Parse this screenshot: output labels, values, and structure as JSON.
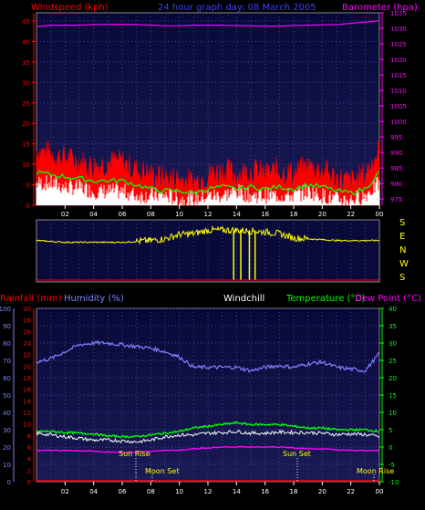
{
  "header": {
    "left_title": "Windspeed (kph)",
    "center_title": "24 hour graph day: 08 March 2005",
    "right_title": "Barometer (hpa)"
  },
  "colors": {
    "background": "#000000",
    "plot_bg_top": "#0a0a3a",
    "plot_bg_bottom": "#15154a",
    "grid": "#3a4aa0",
    "windspeed": "#ff0000",
    "gust": "#ffffff",
    "avg": "#00ff00",
    "barometer": "#ff00ff",
    "direction": "#ffff00",
    "rainfall": "#ff0000",
    "humidity": "#8080ff",
    "windchill": "#ffffff",
    "temperature": "#00ff00",
    "dewpoint": "#ff00ff",
    "axis_left": "#ff0000",
    "axis_right": "#ff00ff",
    "axis_x": "#ffffff",
    "axis_yellow": "#ffff00",
    "axis_green": "#00ff00",
    "axis_humidity": "#8080ff"
  },
  "direction_labels": [
    "S",
    "E",
    "N",
    "W",
    "S"
  ],
  "bottom_header": {
    "rainfall": "Rainfall (mm)",
    "humidity": "Humidity (%)",
    "windchill": "Windchill",
    "temperature": "Temperature (°C)",
    "dewpoint": "Dew Point (°C)"
  },
  "annotations": {
    "sun_rise": "Sun Rise",
    "moon_set": "Moon Set",
    "sun_set": "Sun Set",
    "moon_rise": "Moon Rise"
  },
  "chart_data": [
    {
      "type": "line",
      "title": "24 hour graph day: 08 March 2005",
      "xlabel": "",
      "ylabel": "Windspeed (kph)",
      "y2label": "Barometer (hpa)",
      "x_ticks": [
        "02",
        "04",
        "06",
        "08",
        "10",
        "12",
        "14",
        "16",
        "18",
        "20",
        "22",
        "00"
      ],
      "y_ticks": [
        0,
        5,
        10,
        15,
        20,
        25,
        30,
        35,
        40,
        45
      ],
      "y2_ticks": [
        975,
        980,
        985,
        990,
        995,
        1000,
        1005,
        1010,
        1015,
        1020,
        1025,
        1030,
        1035
      ],
      "ylim": [
        0,
        47
      ],
      "y2lim": [
        973,
        1035
      ],
      "x": [
        0,
        1,
        2,
        3,
        4,
        5,
        6,
        7,
        8,
        9,
        10,
        11,
        12,
        13,
        14,
        15,
        16,
        17,
        18,
        19,
        20,
        21,
        22,
        23,
        24
      ],
      "series": [
        {
          "values": [
            12,
            11,
            10,
            9,
            8,
            9,
            9,
            7,
            6,
            5,
            5,
            4,
            6,
            7,
            6,
            7,
            6,
            7,
            6,
            8,
            7,
            5,
            4,
            6,
            12
          ]
        },
        {
          "values": [
            5,
            5,
            4,
            4,
            3,
            3,
            3,
            2,
            2,
            2,
            1,
            1,
            2,
            2,
            3,
            2,
            2,
            2,
            2,
            3,
            2,
            1,
            1,
            2,
            5
          ]
        },
        {
          "values": [
            8,
            7.5,
            7,
            6.5,
            6,
            6,
            6,
            5,
            4,
            3.5,
            3.5,
            3,
            4,
            4.5,
            4,
            4.5,
            4,
            4.5,
            4,
            5,
            4.5,
            3.5,
            3,
            4,
            8
          ]
        },
        {
          "values": [
            1030.5,
            1031,
            1031,
            1031,
            1031.2,
            1031.3,
            1031.3,
            1031.2,
            1031,
            1030.8,
            1030.8,
            1031,
            1031,
            1031,
            1030.9,
            1030.8,
            1030.7,
            1030.7,
            1030.9,
            1031,
            1031.1,
            1031.2,
            1031.6,
            1032,
            1032.4
          ]
        }
      ]
    },
    {
      "type": "line",
      "ylabel": "",
      "y_ticks_labels": [
        "S",
        "E",
        "N",
        "W",
        "S"
      ],
      "ylim": [
        0,
        360
      ],
      "x": [
        0,
        2,
        4,
        6,
        7,
        8,
        9,
        10,
        11,
        12,
        13,
        14,
        15,
        16,
        17,
        18,
        19,
        20,
        21,
        22,
        23,
        24
      ],
      "series": [
        {
          "values": [
            240,
            230,
            230,
            230,
            235,
            240,
            250,
            275,
            280,
            300,
            300,
            300,
            295,
            290,
            280,
            255,
            250,
            245,
            240,
            240,
            240,
            240
          ]
        }
      ]
    },
    {
      "type": "line",
      "ylabel": "Rainfall (mm)",
      "y_ticks": [
        0,
        2,
        4,
        6,
        8,
        10,
        12,
        14,
        16,
        18,
        20,
        22,
        24,
        26,
        28,
        30
      ],
      "humidity_ticks": [
        0,
        10,
        20,
        30,
        40,
        50,
        60,
        70,
        80,
        90,
        100
      ],
      "temperature_ticks": [
        -10,
        -5,
        0,
        5,
        10,
        15,
        20,
        25,
        30,
        35,
        40
      ],
      "x_ticks": [
        "02",
        "04",
        "06",
        "08",
        "10",
        "12",
        "14",
        "16",
        "18",
        "20",
        "22",
        "00"
      ],
      "temperature_ylim": [
        -10,
        40
      ],
      "x": [
        0,
        1,
        2,
        3,
        4,
        5,
        6,
        7,
        8,
        9,
        10,
        11,
        12,
        13,
        14,
        15,
        16,
        17,
        18,
        19,
        20,
        21,
        22,
        23,
        24
      ],
      "series": [
        {
          "values": [
            69,
            71,
            75,
            79,
            80,
            80,
            79,
            78,
            77,
            75,
            72,
            66,
            66,
            66,
            66,
            64,
            66,
            67,
            66,
            68,
            69,
            66,
            65,
            64,
            74
          ]
        },
        {
          "values": [
            4,
            3.5,
            3,
            2.5,
            2,
            2,
            1.8,
            1.5,
            2,
            3,
            3.5,
            3.5,
            4,
            4.2,
            4.5,
            4,
            4,
            4.3,
            4.2,
            4.2,
            4,
            3.6,
            3.8,
            3.6,
            3
          ]
        },
        {
          "values": [
            4.5,
            4.5,
            4.2,
            4,
            3.8,
            3.2,
            3,
            3,
            3.5,
            4,
            4.5,
            5.5,
            6,
            6.5,
            7,
            6.5,
            6.5,
            6.5,
            6,
            5.5,
            5.5,
            5,
            5,
            5,
            4.5
          ]
        },
        {
          "values": [
            -1,
            -1,
            -1,
            -1,
            -1.2,
            -1.5,
            -1.5,
            -1.5,
            -1.2,
            -1,
            -0.8,
            -0.5,
            -0.3,
            0,
            0,
            0,
            0,
            0,
            -0.2,
            -0.5,
            -0.5,
            -0.8,
            -1,
            -1,
            -1
          ]
        },
        {
          "values": [
            0,
            0,
            0,
            0,
            0,
            0,
            0,
            0,
            0,
            0,
            0,
            0,
            0,
            0,
            0,
            0,
            0,
            0,
            0,
            0,
            0,
            0,
            0,
            0,
            0
          ]
        }
      ]
    }
  ]
}
